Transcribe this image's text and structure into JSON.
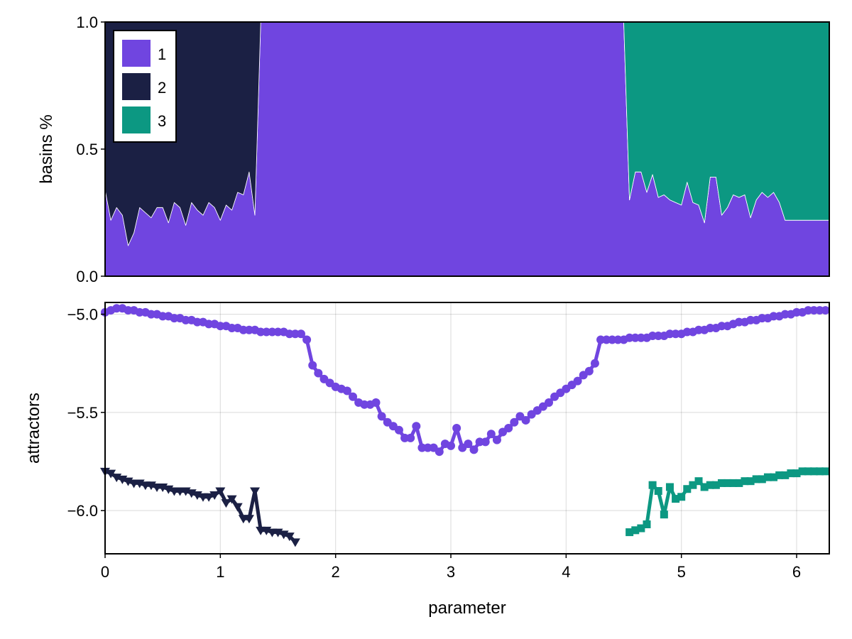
{
  "chart_data": [
    {
      "type": "area",
      "stacked": true,
      "ylabel": "basins %",
      "xlabel": "",
      "xlim": [
        0,
        6.2832
      ],
      "ylim": [
        0,
        1
      ],
      "yticks": [
        0.0,
        0.5,
        1.0
      ],
      "ytick_labels": [
        "0.0",
        "0.5",
        "1.0"
      ],
      "grid": false,
      "legend_position": "top-left",
      "legend": [
        "1",
        "2",
        "3"
      ],
      "colors": {
        "1": "#7045e0",
        "2": "#1b2044",
        "3": "#0c9882"
      },
      "x": [
        0,
        0.05,
        0.1,
        0.15,
        0.2,
        0.25,
        0.3,
        0.35,
        0.4,
        0.45,
        0.5,
        0.55,
        0.6,
        0.65,
        0.7,
        0.75,
        0.8,
        0.85,
        0.9,
        0.95,
        1.0,
        1.05,
        1.1,
        1.15,
        1.2,
        1.25,
        1.3,
        1.35,
        1.4,
        1.45,
        1.5,
        1.55,
        1.6,
        1.65,
        1.7,
        4.5,
        4.55,
        4.6,
        4.65,
        4.7,
        4.75,
        4.8,
        4.85,
        4.9,
        4.95,
        5.0,
        5.05,
        5.1,
        5.15,
        5.2,
        5.25,
        5.3,
        5.35,
        5.4,
        5.45,
        5.5,
        5.55,
        5.6,
        5.65,
        5.7,
        5.75,
        5.8,
        5.85,
        5.9,
        5.95,
        6.0,
        6.05,
        6.1,
        6.15,
        6.2,
        6.25,
        6.2832
      ],
      "series": [
        {
          "name": "1",
          "values": [
            0.34,
            0.22,
            0.27,
            0.24,
            0.12,
            0.17,
            0.27,
            0.25,
            0.23,
            0.27,
            0.27,
            0.21,
            0.29,
            0.27,
            0.2,
            0.29,
            0.26,
            0.24,
            0.29,
            0.27,
            0.22,
            0.28,
            0.26,
            0.33,
            0.32,
            0.41,
            0.24,
            1.0,
            1.0,
            1.0,
            1.0,
            1.0,
            1.0,
            1.0,
            1.0,
            1.0,
            0.3,
            0.41,
            0.41,
            0.33,
            0.4,
            0.31,
            0.32,
            0.3,
            0.29,
            0.28,
            0.37,
            0.29,
            0.28,
            0.21,
            0.39,
            0.39,
            0.24,
            0.27,
            0.32,
            0.31,
            0.32,
            0.23,
            0.3,
            0.33,
            0.31,
            0.33,
            0.29,
            0.22,
            0.22,
            0.22,
            0.22,
            0.22,
            0.22,
            0.22,
            0.22,
            0.22
          ]
        },
        {
          "name": "2",
          "values": [
            0.66,
            0.78,
            0.73,
            0.76,
            0.88,
            0.83,
            0.73,
            0.75,
            0.77,
            0.73,
            0.73,
            0.79,
            0.71,
            0.73,
            0.8,
            0.71,
            0.74,
            0.76,
            0.71,
            0.73,
            0.78,
            0.72,
            0.74,
            0.67,
            0.68,
            0.59,
            0.76,
            0,
            0,
            0,
            0,
            0,
            0,
            0,
            0,
            0,
            0,
            0,
            0,
            0,
            0,
            0,
            0,
            0,
            0,
            0,
            0,
            0,
            0,
            0,
            0,
            0,
            0,
            0,
            0,
            0,
            0,
            0,
            0,
            0,
            0,
            0,
            0,
            0,
            0,
            0,
            0,
            0,
            0,
            0,
            0,
            0
          ]
        },
        {
          "name": "3",
          "values": [
            0,
            0,
            0,
            0,
            0,
            0,
            0,
            0,
            0,
            0,
            0,
            0,
            0,
            0,
            0,
            0,
            0,
            0,
            0,
            0,
            0,
            0,
            0,
            0,
            0,
            0,
            0,
            0,
            0,
            0,
            0,
            0,
            0,
            0,
            0,
            0,
            0.7,
            0.59,
            0.59,
            0.67,
            0.6,
            0.69,
            0.68,
            0.7,
            0.71,
            0.72,
            0.63,
            0.71,
            0.72,
            0.79,
            0.61,
            0.61,
            0.76,
            0.73,
            0.68,
            0.69,
            0.68,
            0.77,
            0.7,
            0.67,
            0.69,
            0.67,
            0.71,
            0.78,
            0.78,
            0.78,
            0.78,
            0.78,
            0.78,
            0.78,
            0.78,
            0.78
          ]
        }
      ]
    },
    {
      "type": "scatter",
      "lines": true,
      "xlabel": "parameter",
      "ylabel": "attractors",
      "xlim": [
        0,
        6.2832
      ],
      "ylim": [
        -6.22,
        -4.94
      ],
      "xticks": [
        0,
        1,
        2,
        3,
        4,
        5,
        6
      ],
      "xtick_labels": [
        "0",
        "1",
        "2",
        "3",
        "4",
        "5",
        "6"
      ],
      "yticks": [
        -5.0,
        -5.5,
        -6.0
      ],
      "ytick_labels": [
        "−5.0",
        "−5.5",
        "−6.0"
      ],
      "grid": true,
      "series": [
        {
          "name": "1",
          "marker": "circle",
          "color": "#7045e0",
          "x": [
            0,
            0.05,
            0.1,
            0.15,
            0.2,
            0.25,
            0.3,
            0.35,
            0.4,
            0.45,
            0.5,
            0.55,
            0.6,
            0.65,
            0.7,
            0.75,
            0.8,
            0.85,
            0.9,
            0.95,
            1.0,
            1.05,
            1.1,
            1.15,
            1.2,
            1.25,
            1.3,
            1.35,
            1.4,
            1.45,
            1.5,
            1.55,
            1.6,
            1.65,
            1.7,
            1.75,
            1.8,
            1.85,
            1.9,
            1.95,
            2.0,
            2.05,
            2.1,
            2.15,
            2.2,
            2.25,
            2.3,
            2.35,
            2.4,
            2.45,
            2.5,
            2.55,
            2.6,
            2.65,
            2.7,
            2.75,
            2.8,
            2.85,
            2.9,
            2.95,
            3.0,
            3.05,
            3.1,
            3.15,
            3.2,
            3.25,
            3.3,
            3.35,
            3.4,
            3.45,
            3.5,
            3.55,
            3.6,
            3.65,
            3.7,
            3.75,
            3.8,
            3.85,
            3.9,
            3.95,
            4.0,
            4.05,
            4.1,
            4.15,
            4.2,
            4.25,
            4.3,
            4.35,
            4.4,
            4.45,
            4.5,
            4.55,
            4.6,
            4.65,
            4.7,
            4.75,
            4.8,
            4.85,
            4.9,
            4.95,
            5.0,
            5.05,
            5.1,
            5.15,
            5.2,
            5.25,
            5.3,
            5.35,
            5.4,
            5.45,
            5.5,
            5.55,
            5.6,
            5.65,
            5.7,
            5.75,
            5.8,
            5.85,
            5.9,
            5.95,
            6.0,
            6.05,
            6.1,
            6.15,
            6.2,
            6.25
          ],
          "y": [
            -4.99,
            -4.98,
            -4.97,
            -4.97,
            -4.98,
            -4.98,
            -4.99,
            -4.99,
            -5.0,
            -5.0,
            -5.01,
            -5.01,
            -5.02,
            -5.02,
            -5.03,
            -5.03,
            -5.04,
            -5.04,
            -5.05,
            -5.05,
            -5.06,
            -5.06,
            -5.07,
            -5.07,
            -5.08,
            -5.08,
            -5.08,
            -5.09,
            -5.09,
            -5.09,
            -5.09,
            -5.09,
            -5.1,
            -5.1,
            -5.1,
            -5.13,
            -5.26,
            -5.3,
            -5.33,
            -5.35,
            -5.37,
            -5.38,
            -5.39,
            -5.42,
            -5.45,
            -5.46,
            -5.46,
            -5.45,
            -5.52,
            -5.55,
            -5.57,
            -5.59,
            -5.63,
            -5.63,
            -5.57,
            -5.68,
            -5.68,
            -5.68,
            -5.7,
            -5.66,
            -5.67,
            -5.58,
            -5.68,
            -5.66,
            -5.69,
            -5.65,
            -5.65,
            -5.61,
            -5.64,
            -5.6,
            -5.58,
            -5.55,
            -5.52,
            -5.54,
            -5.51,
            -5.49,
            -5.47,
            -5.45,
            -5.42,
            -5.4,
            -5.38,
            -5.36,
            -5.34,
            -5.31,
            -5.29,
            -5.25,
            -5.13,
            -5.13,
            -5.13,
            -5.13,
            -5.13,
            -5.12,
            -5.12,
            -5.12,
            -5.12,
            -5.11,
            -5.11,
            -5.11,
            -5.1,
            -5.1,
            -5.1,
            -5.09,
            -5.09,
            -5.08,
            -5.08,
            -5.07,
            -5.07,
            -5.06,
            -5.06,
            -5.05,
            -5.04,
            -5.04,
            -5.03,
            -5.03,
            -5.02,
            -5.02,
            -5.01,
            -5.01,
            -5.0,
            -5.0,
            -4.99,
            -4.99,
            -4.98,
            -4.98,
            -4.98,
            -4.98
          ]
        },
        {
          "name": "2",
          "marker": "triangle-down",
          "color": "#1b2044",
          "x": [
            0,
            0.05,
            0.1,
            0.15,
            0.2,
            0.25,
            0.3,
            0.35,
            0.4,
            0.45,
            0.5,
            0.55,
            0.6,
            0.65,
            0.7,
            0.75,
            0.8,
            0.85,
            0.9,
            0.95,
            1.0,
            1.05,
            1.1,
            1.15,
            1.2,
            1.25,
            1.3,
            1.35,
            1.4,
            1.45,
            1.5,
            1.55,
            1.6,
            1.65
          ],
          "y": [
            -5.8,
            -5.81,
            -5.83,
            -5.84,
            -5.85,
            -5.86,
            -5.86,
            -5.87,
            -5.87,
            -5.88,
            -5.88,
            -5.89,
            -5.9,
            -5.9,
            -5.9,
            -5.91,
            -5.92,
            -5.93,
            -5.93,
            -5.92,
            -5.9,
            -5.96,
            -5.94,
            -5.98,
            -6.04,
            -6.04,
            -5.9,
            -6.1,
            -6.1,
            -6.11,
            -6.11,
            -6.12,
            -6.13,
            -6.16
          ]
        },
        {
          "name": "3",
          "marker": "square",
          "color": "#0c9882",
          "x": [
            4.55,
            4.6,
            4.65,
            4.7,
            4.75,
            4.8,
            4.85,
            4.9,
            4.95,
            5.0,
            5.05,
            5.1,
            5.15,
            5.2,
            5.25,
            5.3,
            5.35,
            5.4,
            5.45,
            5.5,
            5.55,
            5.6,
            5.65,
            5.7,
            5.75,
            5.8,
            5.85,
            5.9,
            5.95,
            6.0,
            6.05,
            6.1,
            6.15,
            6.2,
            6.25
          ],
          "y": [
            -6.11,
            -6.1,
            -6.09,
            -6.07,
            -5.87,
            -5.9,
            -6.02,
            -5.88,
            -5.94,
            -5.93,
            -5.89,
            -5.87,
            -5.85,
            -5.88,
            -5.87,
            -5.87,
            -5.86,
            -5.86,
            -5.86,
            -5.86,
            -5.85,
            -5.85,
            -5.84,
            -5.84,
            -5.83,
            -5.83,
            -5.82,
            -5.82,
            -5.81,
            -5.81,
            -5.8,
            -5.8,
            -5.8,
            -5.8,
            -5.8
          ]
        }
      ]
    }
  ]
}
